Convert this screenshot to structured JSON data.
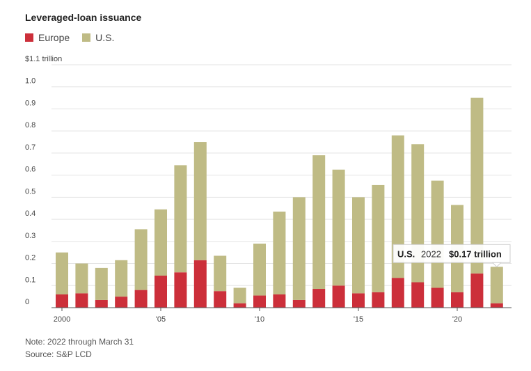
{
  "chart_data": {
    "type": "bar",
    "stacked": true,
    "title": "Leveraged-loan issuance",
    "categories": [
      "2000",
      "2001",
      "2002",
      "2003",
      "2004",
      "2005",
      "2006",
      "2007",
      "2008",
      "2009",
      "2010",
      "2011",
      "2012",
      "2013",
      "2014",
      "2015",
      "2016",
      "2017",
      "2018",
      "2019",
      "2020",
      "2021",
      "2022"
    ],
    "x_tick_labels": [
      "2000",
      "'05",
      "'10",
      "'15",
      "'20"
    ],
    "y_tick_labels": [
      "$1.1 trillion",
      "1.0",
      "0.9",
      "0.8",
      "0.7",
      "0.6",
      "0.5",
      "0.4",
      "0.3",
      "0.2",
      "0.1",
      "0"
    ],
    "ylim": [
      0,
      1.1
    ],
    "grid": true,
    "legend_position": "top-left",
    "series": [
      {
        "name": "Europe",
        "color": "#cc2f3a",
        "values": [
          0.06,
          0.065,
          0.035,
          0.05,
          0.08,
          0.145,
          0.16,
          0.215,
          0.075,
          0.02,
          0.055,
          0.06,
          0.035,
          0.085,
          0.1,
          0.065,
          0.07,
          0.135,
          0.115,
          0.09,
          0.07,
          0.155,
          0.02
        ]
      },
      {
        "name": "U.S.",
        "color": "#bfbb85",
        "values": [
          0.19,
          0.135,
          0.145,
          0.165,
          0.275,
          0.3,
          0.485,
          0.535,
          0.16,
          0.07,
          0.235,
          0.375,
          0.465,
          0.605,
          0.525,
          0.435,
          0.485,
          0.645,
          0.625,
          0.485,
          0.395,
          0.795,
          0.165
        ]
      }
    ],
    "annotation": {
      "category": "2022",
      "series_label": "U.S.",
      "year_label": "2022",
      "value_label": "$0.17 trillion"
    }
  },
  "notes": {
    "line1": "Note: 2022 through March 31",
    "line2": "Source: S&P LCD"
  }
}
